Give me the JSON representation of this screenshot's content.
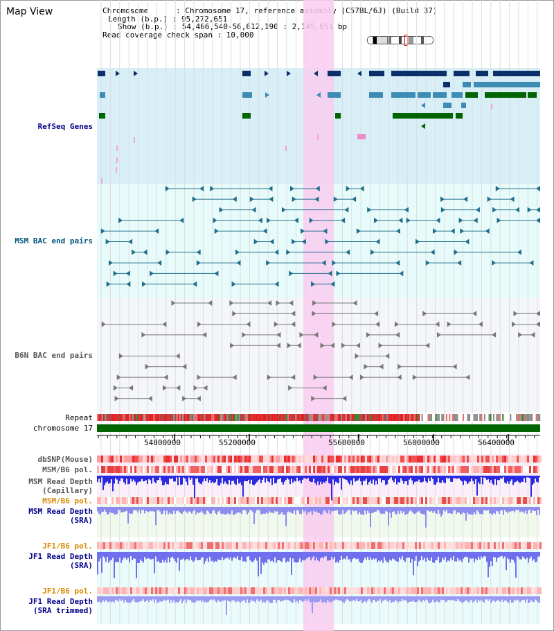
{
  "title": "Map View",
  "info": {
    "chromosome": "Chromosome      : Chromosome 17, reference assembly (C57BL/6J) (Build 37)",
    "length": "Length (b.p.) : 95,272,651",
    "show": "Show (b.p.) : 54,466,540-56,612,190 : 2,145,651 bp",
    "coverage": "Read coverage check span : 10,000"
  },
  "tracks": {
    "refseq": "RefSeq Genes",
    "msm_bac": "MSM BAC end pairs",
    "b6n_bac": "B6N BAC end pairs",
    "repeat": "Repeat",
    "chromosome": "chromosome 17",
    "dbsnp": "dbSNP(Mouse)",
    "msm_b6_pol": "MSM/B6 pol.",
    "msm_read_cap_1": "MSM Read Depth",
    "msm_read_cap_2": "(Capillary)",
    "msm_b6_pol2": "MSM/B6 pol.",
    "msm_read_sra_1": "MSM Read Depth",
    "msm_read_sra_2": "(SRA)",
    "jf1_pol": "JF1/B6 pol.",
    "jf1_read_1": "JF1 Read Depth",
    "jf1_read_2": "(SRA)",
    "jf1_pol2": "JF1/B6 pol.",
    "jf1_trim_1": "JF1 Read Depth",
    "jf1_trim_2": "(SRA trimmed)"
  },
  "axis": {
    "ticks": [
      "54800000",
      "55200000",
      "55600000",
      "56000000",
      "56400000"
    ]
  },
  "colors": {
    "highlight": "#f9ccf0",
    "refseq_bg": "#d8eff8",
    "msm_bg": "#e8fbfb",
    "b6n_bg": "#f4f6fa",
    "navy": "#0a2f6a",
    "teal": "#3d8cb4",
    "green": "#006400",
    "depth_blue": "#2020e0",
    "depth_light": "#8c8cf0"
  }
}
